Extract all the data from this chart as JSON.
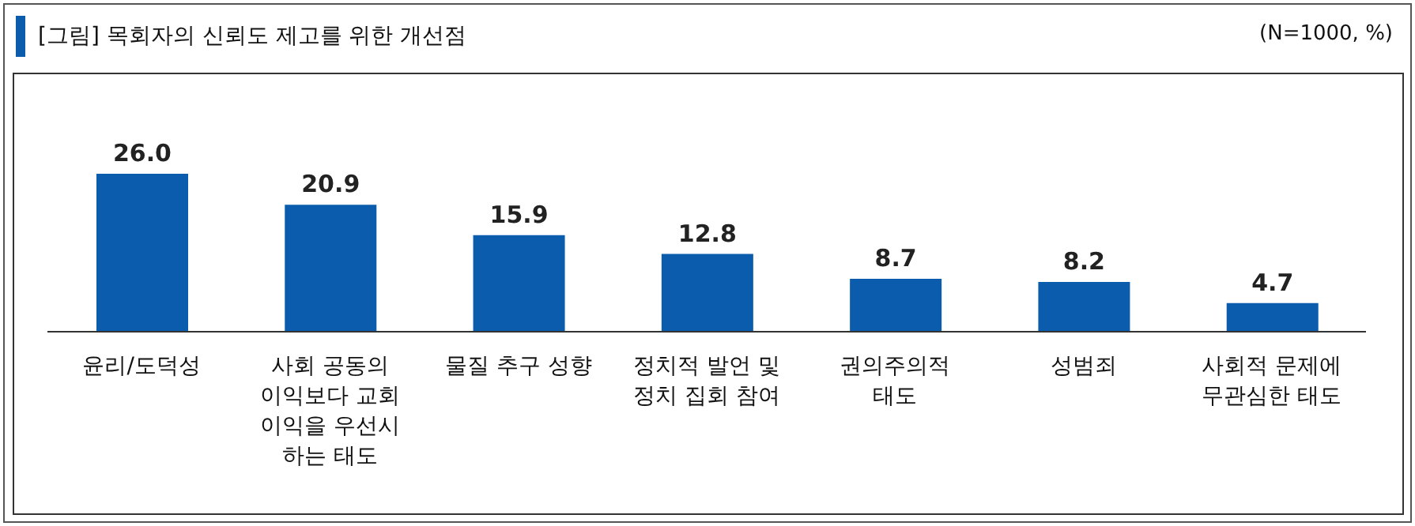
{
  "chart_data": {
    "type": "bar",
    "title": "[그림] 목회자의 신뢰도 제고를 위한 개선점",
    "annotations": [
      "(N=1000, %)"
    ],
    "categories": [
      "윤리/도덕성",
      "사회 공동의\n이익보다 교회\n이익을 우선시\n하는 태도",
      "물질 추구 성향",
      "정치적 발언 및\n정치 집회 참여",
      "권의주의적\n태도",
      "성범죄",
      "사회적 문제에\n무관심한 태도"
    ],
    "values": [
      26.0,
      20.9,
      15.9,
      12.8,
      8.7,
      8.2,
      4.7
    ],
    "value_labels": [
      "26.0",
      "20.9",
      "15.9",
      "12.8",
      "8.7",
      "8.2",
      "4.7"
    ],
    "color": "#0b5cad",
    "grid": false,
    "legend": false
  }
}
